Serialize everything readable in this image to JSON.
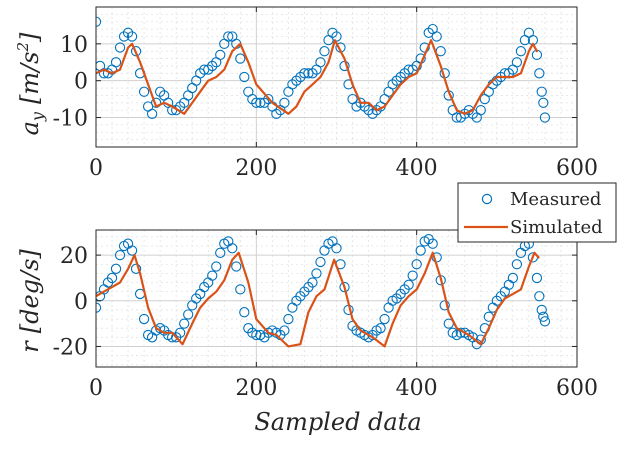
{
  "colors": {
    "measured": "#0072BD",
    "simulated": "#D95319"
  },
  "chart_data": [
    {
      "type": "line",
      "ylabel": "a_y [m/s^2]",
      "ylabel_parts": {
        "var": "a",
        "sub": "y",
        "unit": "[m/s",
        "sup": "2",
        "close": "]"
      },
      "xlim": [
        0,
        600
      ],
      "ylim": [
        -18,
        20
      ],
      "xticks": [
        0,
        200,
        400,
        600
      ],
      "xtick_labels": [
        "0",
        "200",
        "400",
        "600"
      ],
      "yticks": [
        -10,
        0,
        10
      ],
      "ytick_labels": [
        "-10",
        "0",
        "10"
      ],
      "grid": true,
      "series": [
        {
          "name": "Measured",
          "style": "markers",
          "x": [
            0,
            5,
            10,
            15,
            20,
            25,
            30,
            35,
            40,
            45,
            50,
            55,
            60,
            65,
            70,
            75,
            80,
            85,
            90,
            95,
            100,
            105,
            110,
            115,
            120,
            125,
            130,
            135,
            140,
            145,
            150,
            155,
            160,
            165,
            170,
            175,
            180,
            185,
            190,
            195,
            200,
            205,
            210,
            215,
            220,
            225,
            230,
            235,
            240,
            245,
            250,
            255,
            260,
            265,
            270,
            275,
            280,
            285,
            290,
            295,
            300,
            305,
            310,
            315,
            320,
            325,
            330,
            335,
            340,
            345,
            350,
            355,
            360,
            365,
            370,
            375,
            380,
            385,
            390,
            395,
            400,
            405,
            410,
            415,
            420,
            425,
            430,
            435,
            440,
            445,
            450,
            455,
            460,
            465,
            470,
            475,
            480,
            485,
            490,
            495,
            500,
            505,
            510,
            515,
            520,
            525,
            530,
            535,
            540,
            545,
            550,
            553,
            556,
            558,
            560
          ],
          "y": [
            16,
            4,
            2,
            2,
            3,
            5,
            9,
            12,
            13,
            12,
            8,
            2,
            -3,
            -7,
            -9,
            -6,
            -3,
            -4,
            -6,
            -8,
            -8,
            -7,
            -6,
            -4,
            -2,
            0,
            2,
            3,
            3,
            4,
            5,
            7,
            10,
            12,
            12,
            10,
            6,
            1,
            -3,
            -5,
            -6,
            -6,
            -6,
            -5,
            -7,
            -9,
            -8,
            -6,
            -3,
            -1,
            0,
            1,
            2,
            2,
            2,
            3,
            5,
            8,
            11,
            13,
            12,
            9,
            4,
            -1,
            -5,
            -7,
            -6,
            -7,
            -8,
            -9,
            -8,
            -7,
            -5,
            -3,
            -1,
            0,
            1,
            2,
            3,
            3,
            4,
            6,
            9,
            13,
            14,
            12,
            8,
            2,
            -4,
            -8,
            -10,
            -10,
            -9,
            -8,
            -9,
            -10,
            -8,
            -5,
            -3,
            -1,
            0,
            1,
            2,
            2,
            3,
            5,
            8,
            11,
            13,
            11,
            7,
            2,
            -3,
            -6,
            -10
          ]
        },
        {
          "name": "Simulated",
          "style": "line",
          "x": [
            0,
            10,
            20,
            30,
            40,
            45,
            55,
            65,
            75,
            85,
            95,
            110,
            120,
            130,
            140,
            150,
            160,
            170,
            180,
            190,
            200,
            220,
            240,
            250,
            260,
            270,
            280,
            290,
            298,
            310,
            320,
            330,
            340,
            350,
            360,
            370,
            380,
            390,
            400,
            410,
            418,
            430,
            440,
            450,
            460,
            470,
            480,
            490,
            500,
            510,
            520,
            530,
            540,
            545,
            550
          ],
          "y": [
            2,
            3,
            2,
            3,
            9,
            10,
            5,
            -1,
            -7,
            -6,
            -7,
            -9,
            -6,
            -3,
            0,
            1,
            3,
            8,
            10,
            5,
            -1,
            -6,
            -9,
            -7,
            -3,
            -1,
            1,
            5,
            11,
            6,
            -1,
            -6,
            -6,
            -8,
            -7,
            -4,
            -1,
            1,
            2,
            7,
            11,
            4,
            -3,
            -8,
            -9,
            -8,
            -4,
            -1,
            1,
            1,
            1,
            2,
            8,
            10,
            8
          ]
        }
      ]
    },
    {
      "type": "line",
      "ylabel": "r [deg/s]",
      "ylabel_parts": {
        "var": "r",
        "unit": "[deg/s]"
      },
      "xlabel": "Sampled data",
      "xlim": [
        0,
        600
      ],
      "ylim": [
        -29,
        31
      ],
      "xticks": [
        0,
        200,
        400,
        600
      ],
      "xtick_labels": [
        "0",
        "200",
        "400",
        "600"
      ],
      "yticks": [
        -20,
        0,
        20
      ],
      "ytick_labels": [
        "-20",
        "0",
        "20"
      ],
      "grid": true,
      "series": [
        {
          "name": "Measured",
          "style": "markers",
          "x": [
            0,
            5,
            10,
            15,
            20,
            25,
            30,
            35,
            40,
            45,
            50,
            55,
            60,
            65,
            70,
            75,
            80,
            85,
            90,
            95,
            100,
            105,
            110,
            115,
            120,
            125,
            130,
            135,
            140,
            145,
            150,
            155,
            160,
            165,
            170,
            175,
            180,
            185,
            190,
            195,
            200,
            205,
            210,
            215,
            220,
            225,
            230,
            235,
            240,
            245,
            250,
            255,
            260,
            265,
            270,
            275,
            280,
            285,
            290,
            295,
            300,
            305,
            310,
            315,
            320,
            325,
            330,
            335,
            340,
            345,
            350,
            355,
            360,
            365,
            370,
            375,
            380,
            385,
            390,
            395,
            400,
            405,
            410,
            415,
            420,
            425,
            430,
            435,
            440,
            445,
            450,
            455,
            460,
            465,
            470,
            475,
            480,
            485,
            490,
            495,
            500,
            505,
            510,
            515,
            520,
            525,
            530,
            535,
            540,
            545,
            550,
            553,
            556,
            558,
            560
          ],
          "y": [
            -3,
            2,
            5,
            8,
            10,
            14,
            20,
            24,
            25,
            22,
            14,
            3,
            -8,
            -15,
            -16,
            -13,
            -12,
            -13,
            -15,
            -16,
            -16,
            -14,
            -10,
            -6,
            -2,
            1,
            3,
            6,
            8,
            11,
            15,
            21,
            25,
            26,
            23,
            15,
            5,
            -5,
            -12,
            -14,
            -15,
            -15,
            -16,
            -14,
            -13,
            -14,
            -15,
            -13,
            -8,
            -3,
            0,
            2,
            4,
            6,
            8,
            12,
            17,
            22,
            25,
            26,
            23,
            16,
            6,
            -4,
            -11,
            -13,
            -14,
            -15,
            -16,
            -15,
            -13,
            -12,
            -8,
            -3,
            0,
            1,
            3,
            5,
            7,
            11,
            16,
            22,
            26,
            27,
            25,
            19,
            9,
            -2,
            -10,
            -14,
            -15,
            -14,
            -14,
            -15,
            -16,
            -19,
            -17,
            -12,
            -7,
            -3,
            0,
            2,
            4,
            7,
            10,
            16,
            21,
            24,
            25,
            19,
            10,
            2,
            -4,
            -7,
            -9
          ]
        },
        {
          "name": "Simulated",
          "style": "line",
          "x": [
            0,
            10,
            20,
            30,
            40,
            48,
            55,
            65,
            75,
            85,
            95,
            108,
            120,
            130,
            140,
            150,
            160,
            170,
            178,
            190,
            200,
            215,
            225,
            240,
            255,
            265,
            275,
            285,
            297,
            310,
            320,
            330,
            345,
            360,
            370,
            380,
            390,
            400,
            410,
            420,
            430,
            440,
            450,
            465,
            480,
            490,
            500,
            510,
            520,
            530,
            540,
            547,
            552
          ],
          "y": [
            2,
            4,
            6,
            8,
            14,
            20,
            12,
            -3,
            -12,
            -14,
            -14,
            -19,
            -10,
            -3,
            1,
            4,
            9,
            18,
            21,
            8,
            -8,
            -14,
            -15,
            -20,
            -19,
            -5,
            2,
            5,
            18,
            6,
            -8,
            -13,
            -16,
            -20,
            -10,
            -2,
            2,
            5,
            12,
            21,
            10,
            -5,
            -12,
            -15,
            -19,
            -12,
            -4,
            1,
            3,
            5,
            15,
            21,
            19
          ]
        }
      ]
    }
  ],
  "legend": {
    "entries": [
      "Measured",
      "Simulated"
    ],
    "location": "east-between-plots"
  }
}
